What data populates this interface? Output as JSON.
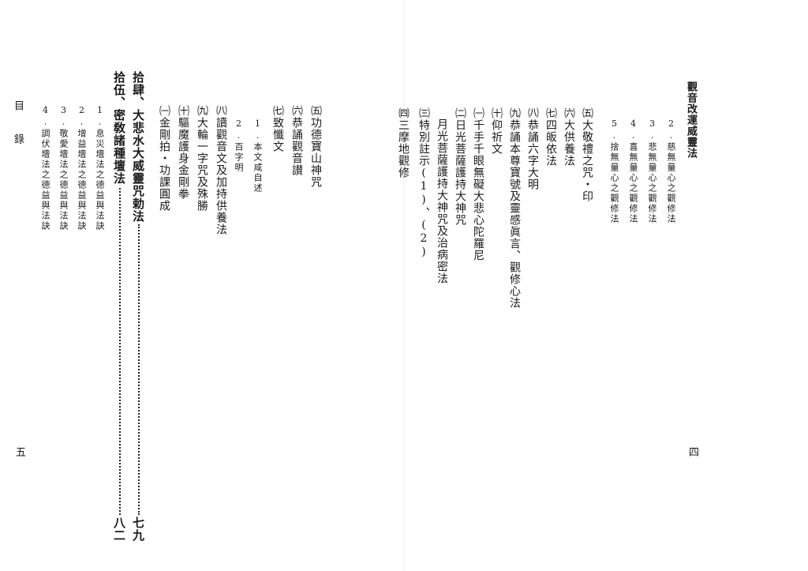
{
  "left_page": {
    "running_title": "目　錄",
    "page_number": "五",
    "columns": [
      "拾肆、大悲水大威靈咒勅法",
      "拾伍、密敎諸種壇法",
      "㈤功德寶山神咒",
      "㈥恭誦觀音讃",
      "㈦致懺文",
      "1.本文咸自述",
      "2.百字明",
      "㈧讀觀音文及加持供養法",
      "㈨大輪一字咒及殊勝",
      "㈩驅魔護身金剛拳",
      "㈠金剛拍・功課圓成",
      "1.息災壇法之德益與法訣",
      "2.增益壇法之德益與法訣",
      "3.敬愛壇法之德益與法訣",
      "4.調伏壇法之德益與法訣"
    ],
    "entry_pages": [
      "七九",
      "八二"
    ]
  },
  "right_page": {
    "page_number": "四",
    "columns": [
      "觀音改運威靈法",
      "2.慈無量心之觀修法",
      "3.悲無量心之觀修法",
      "4.喜無量心之觀修法",
      "5.捨無量心之觀修法",
      "㈤大敬禮之咒・印",
      "㈥大供養法",
      "㈦四皈依法",
      "㈧恭誦六字大明",
      "㈨恭誦本尊寶號及靈感眞言、觀修心法",
      "㈩仰祈文",
      "㈠千手千眼無礙大悲心陀羅尼",
      "㈡日光菩薩護持大神咒",
      "月光菩薩護持大神咒及治病密法",
      "㈢特別註示(1)、(2)",
      "㈣三摩地觀修"
    ]
  }
}
